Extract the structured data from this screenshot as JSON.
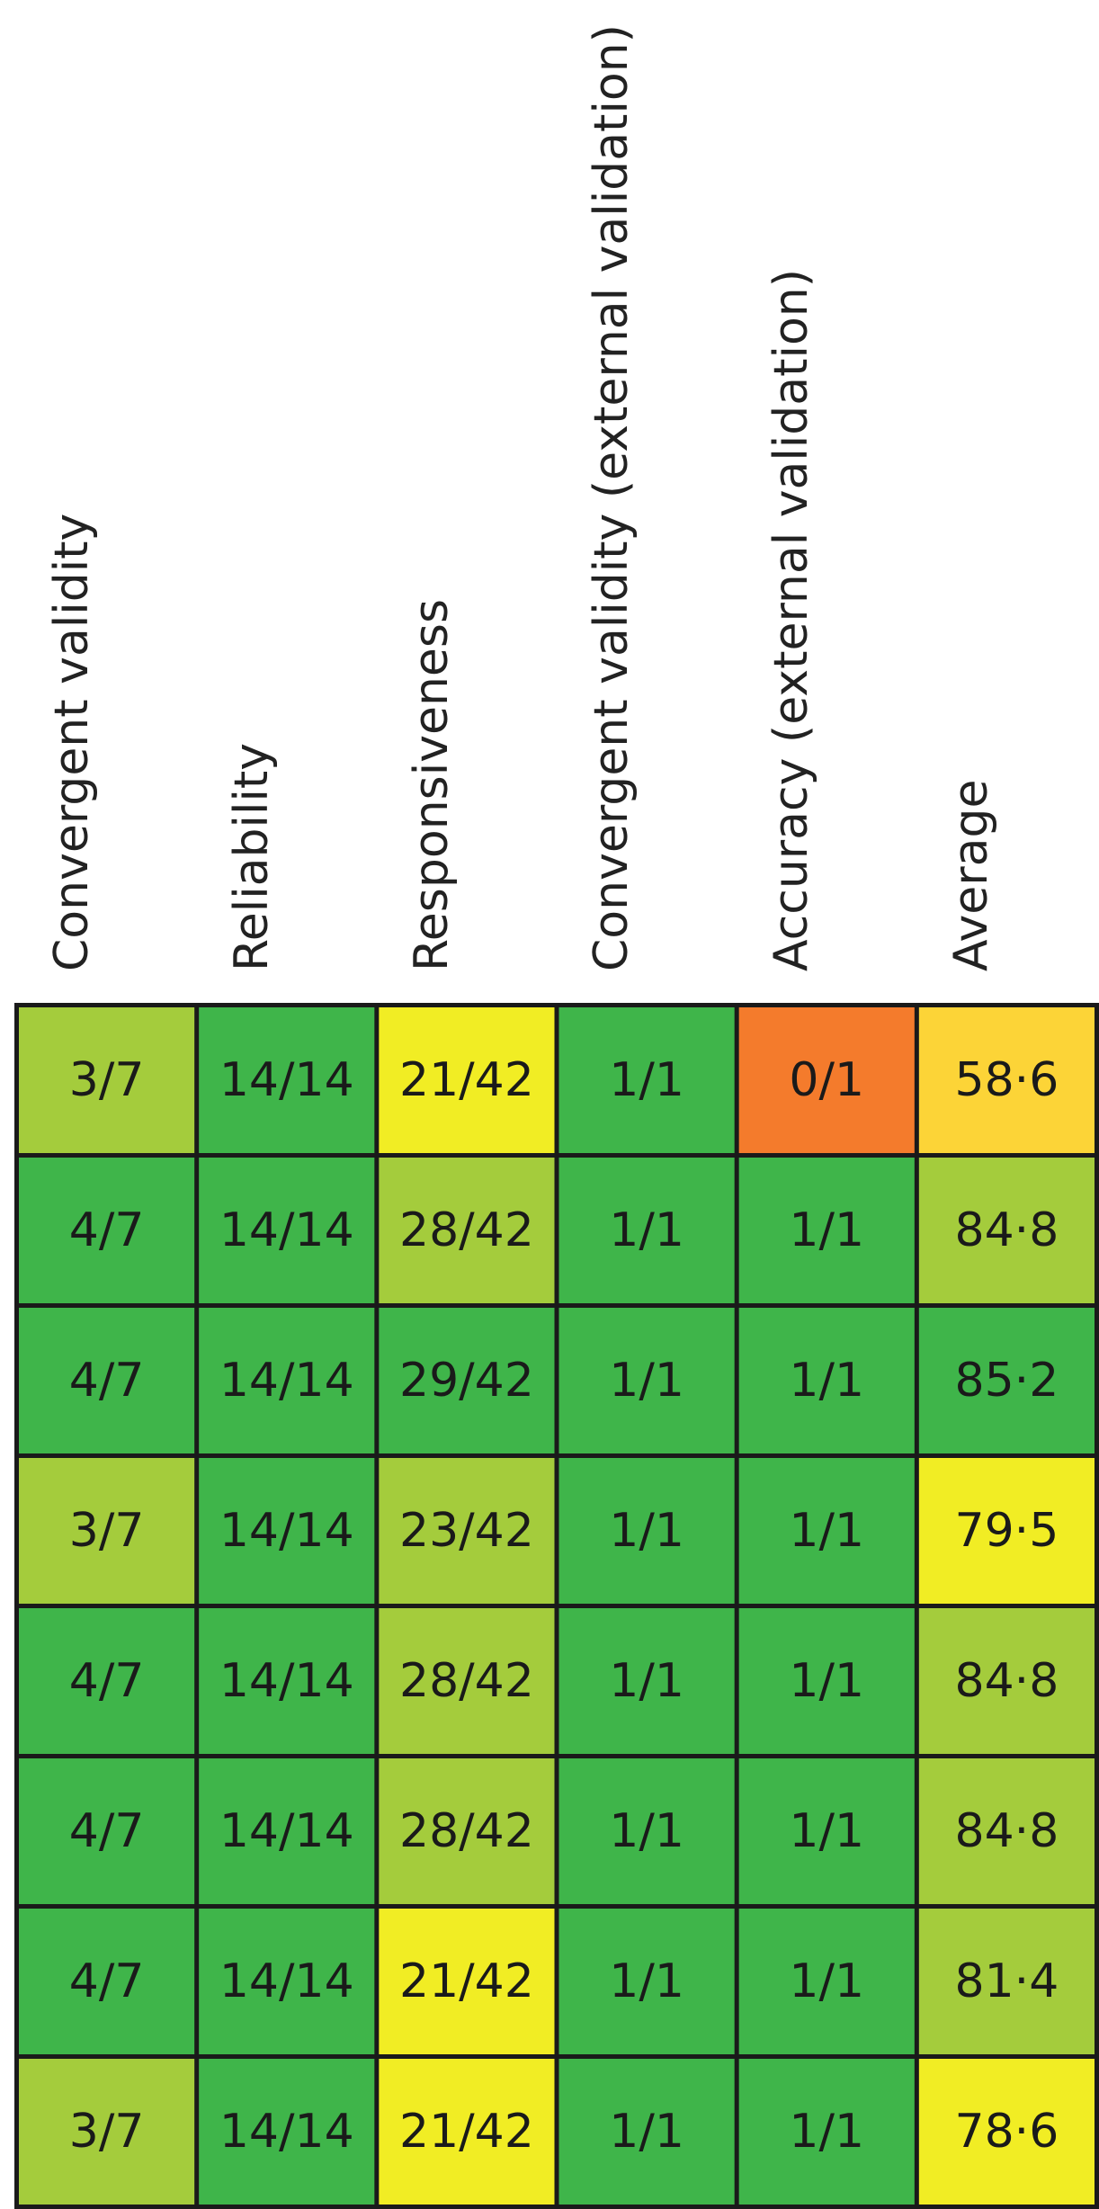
{
  "chart_data": {
    "type": "table",
    "columns": [
      "Convergent validity",
      "Reliability",
      "Responsiveness",
      "Convergent validity (external validation)",
      "Accuracy (external validation)",
      "Average"
    ],
    "rows": [
      [
        "3/7",
        "14/14",
        "21/42",
        "1/1",
        "0/1",
        "58·6"
      ],
      [
        "4/7",
        "14/14",
        "28/42",
        "1/1",
        "1/1",
        "84·8"
      ],
      [
        "4/7",
        "14/14",
        "29/42",
        "1/1",
        "1/1",
        "85·2"
      ],
      [
        "3/7",
        "14/14",
        "23/42",
        "1/1",
        "1/1",
        "79·5"
      ],
      [
        "4/7",
        "14/14",
        "28/42",
        "1/1",
        "1/1",
        "84·8"
      ],
      [
        "4/7",
        "14/14",
        "28/42",
        "1/1",
        "1/1",
        "84·8"
      ],
      [
        "4/7",
        "14/14",
        "21/42",
        "1/1",
        "1/1",
        "81·4"
      ],
      [
        "3/7",
        "14/14",
        "21/42",
        "1/1",
        "1/1",
        "78·6"
      ]
    ],
    "cell_levels": [
      [
        "lightgreen",
        "green",
        "yellow",
        "green",
        "orange",
        "amber"
      ],
      [
        "green",
        "green",
        "lightgreen",
        "green",
        "green",
        "lightgreen"
      ],
      [
        "green",
        "green",
        "green",
        "green",
        "green",
        "green"
      ],
      [
        "lightgreen",
        "green",
        "lightgreen",
        "green",
        "green",
        "yellow"
      ],
      [
        "green",
        "green",
        "lightgreen",
        "green",
        "green",
        "lightgreen"
      ],
      [
        "green",
        "green",
        "lightgreen",
        "green",
        "green",
        "lightgreen"
      ],
      [
        "green",
        "green",
        "yellow",
        "green",
        "green",
        "lightgreen"
      ],
      [
        "lightgreen",
        "green",
        "yellow",
        "green",
        "green",
        "yellow"
      ]
    ],
    "palette": {
      "green": "#3fb54a",
      "lightgreen": "#a4cc3c",
      "yellow": "#f1ed24",
      "amber": "#fcd437",
      "orange": "#f47b2c"
    }
  }
}
